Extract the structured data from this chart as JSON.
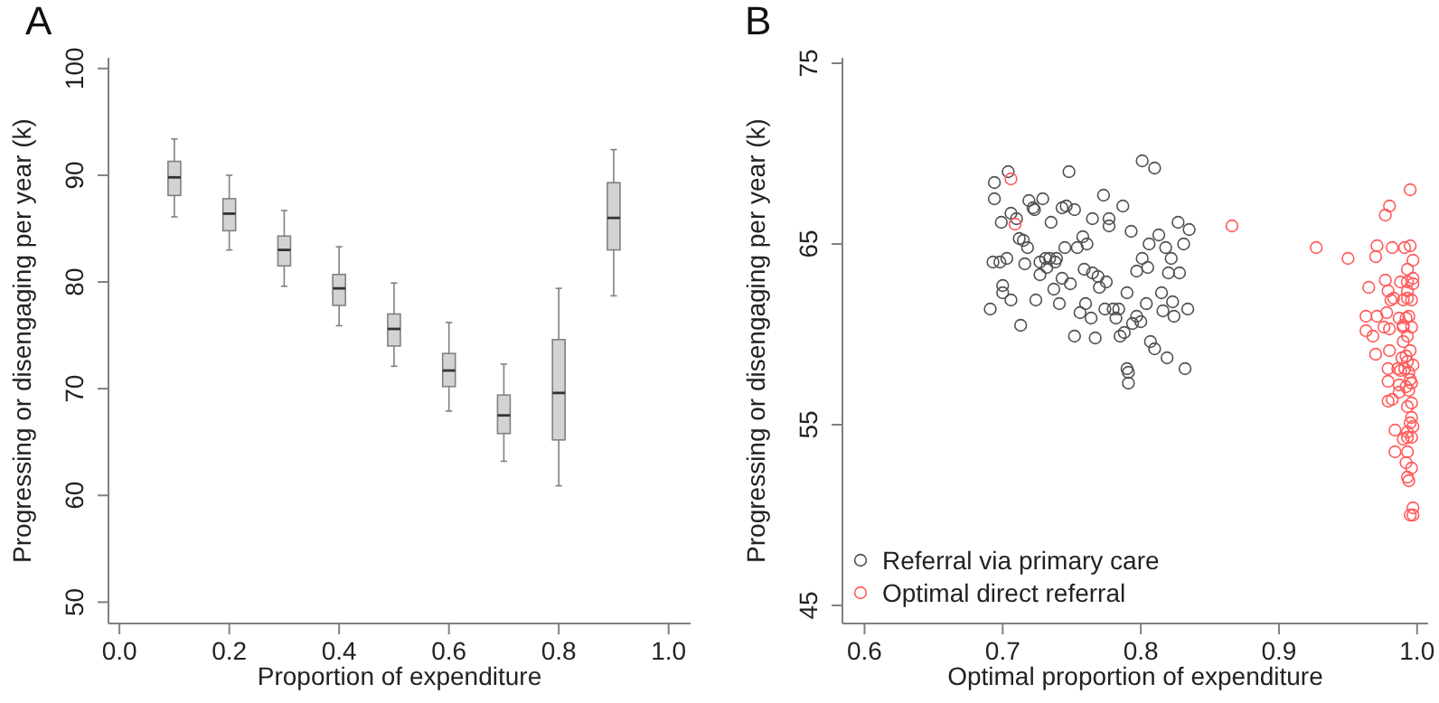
{
  "chart_data": [
    {
      "type": "box",
      "title": "A",
      "xlabel": "Proportion of expenditure",
      "ylabel": "Progressing or disengaging per year (k)",
      "x": [
        0.1,
        0.2,
        0.3,
        0.4,
        0.5,
        0.6,
        0.7,
        0.8,
        0.9
      ],
      "xlim": [
        -0.02,
        1.04
      ],
      "xticks": [
        {
          "value": 0,
          "label": "0.0"
        },
        {
          "value": 0.2,
          "label": "0.2"
        },
        {
          "value": 0.4,
          "label": "0.4"
        },
        {
          "value": 0.6,
          "label": "0.6"
        },
        {
          "value": 0.8,
          "label": "0.8"
        },
        {
          "value": 1,
          "label": "1.0"
        }
      ],
      "ylim": [
        48,
        101
      ],
      "yticks": [
        50,
        60,
        70,
        80,
        90,
        100
      ],
      "series": [
        {
          "color": "#d3d3d3",
          "boxes": [
            {
              "low": 86.1,
              "q1": 88.1,
              "median": 89.8,
              "q3": 91.3,
              "high": 93.4
            },
            {
              "low": 83.0,
              "q1": 84.8,
              "median": 86.4,
              "q3": 87.8,
              "high": 90.0
            },
            {
              "low": 79.6,
              "q1": 81.5,
              "median": 83.0,
              "q3": 84.3,
              "high": 86.7
            },
            {
              "low": 75.9,
              "q1": 77.8,
              "median": 79.4,
              "q3": 80.7,
              "high": 83.3
            },
            {
              "low": 72.1,
              "q1": 74.0,
              "median": 75.6,
              "q3": 77.0,
              "high": 79.9
            },
            {
              "low": 67.9,
              "q1": 70.2,
              "median": 71.7,
              "q3": 73.3,
              "high": 76.2
            },
            {
              "low": 63.2,
              "q1": 65.8,
              "median": 67.5,
              "q3": 69.4,
              "high": 72.3
            },
            {
              "low": 60.9,
              "q1": 65.2,
              "median": 69.6,
              "q3": 74.6,
              "high": 79.4
            },
            {
              "low": 78.7,
              "q1": 83.0,
              "median": 86.0,
              "q3": 89.3,
              "high": 92.4
            }
          ]
        }
      ]
    },
    {
      "type": "scatter",
      "title": "B",
      "xlabel": "Optimal proportion of expenditure",
      "ylabel": "Progressing or disengaging per year (k)",
      "xlim": [
        0.584,
        1.008
      ],
      "xticks": [
        {
          "value": 0.6,
          "label": "0.6"
        },
        {
          "value": 0.7,
          "label": "0.7"
        },
        {
          "value": 0.8,
          "label": "0.8"
        },
        {
          "value": 0.9,
          "label": "0.9"
        },
        {
          "value": 1,
          "label": "1.0"
        }
      ],
      "ylim": [
        44,
        75.3
      ],
      "yticks": [
        45,
        55,
        65,
        75
      ],
      "legend": "bottom left",
      "marker": "circle",
      "series": [
        {
          "name": "Referral via primary care",
          "color": "#505050",
          "x": [
            0.801,
            0.81,
            0.704,
            0.748,
            0.694,
            0.694,
            0.729,
            0.719,
            0.722,
            0.723,
            0.743,
            0.746,
            0.752,
            0.773,
            0.787,
            0.706,
            0.71,
            0.699,
            0.735,
            0.765,
            0.777,
            0.777,
            0.793,
            0.813,
            0.827,
            0.835,
            0.831,
            0.712,
            0.715,
            0.718,
            0.745,
            0.754,
            0.758,
            0.761,
            0.806,
            0.818,
            0.822,
            0.801,
            0.797,
            0.805,
            0.828,
            0.82,
            0.693,
            0.698,
            0.703,
            0.716,
            0.727,
            0.731,
            0.734,
            0.739,
            0.738,
            0.732,
            0.727,
            0.743,
            0.749,
            0.759,
            0.765,
            0.769,
            0.775,
            0.77,
            0.737,
            0.7,
            0.7,
            0.706,
            0.724,
            0.741,
            0.76,
            0.756,
            0.764,
            0.774,
            0.78,
            0.782,
            0.784,
            0.79,
            0.794,
            0.797,
            0.8,
            0.804,
            0.815,
            0.816,
            0.823,
            0.824,
            0.834,
            0.691,
            0.713,
            0.752,
            0.767,
            0.785,
            0.788,
            0.807,
            0.81,
            0.819,
            0.832,
            0.79,
            0.791,
            0.791
          ],
          "values": [
            69.6,
            69.2,
            69.0,
            69.0,
            68.4,
            67.5,
            67.5,
            67.4,
            67.0,
            66.9,
            67.0,
            67.1,
            66.9,
            67.7,
            67.1,
            66.7,
            66.4,
            66.2,
            66.2,
            66.4,
            66.4,
            66.0,
            65.7,
            65.5,
            66.2,
            65.8,
            65.0,
            65.3,
            65.2,
            64.8,
            64.8,
            64.8,
            65.4,
            65.0,
            65.0,
            64.8,
            64.2,
            64.2,
            63.5,
            63.7,
            63.4,
            63.4,
            64.0,
            64.0,
            64.2,
            63.9,
            64.0,
            64.2,
            64.2,
            64.2,
            64.0,
            63.7,
            63.3,
            63.1,
            62.8,
            63.6,
            63.4,
            63.2,
            62.9,
            62.6,
            62.5,
            62.7,
            62.3,
            61.9,
            61.9,
            61.7,
            61.7,
            61.2,
            60.9,
            61.4,
            61.4,
            60.9,
            61.4,
            62.3,
            60.6,
            61.0,
            60.7,
            61.7,
            62.3,
            61.3,
            61.8,
            61.0,
            61.4,
            61.4,
            60.5,
            59.9,
            59.8,
            59.9,
            60.1,
            59.6,
            59.2,
            58.7,
            58.1,
            58.1,
            57.9,
            57.3
          ]
        },
        {
          "name": "Optimal direct referral",
          "color": "#ff5a5a",
          "x": [
            0.706,
            0.709,
            0.866,
            0.995,
            0.98,
            0.977,
            0.927,
            0.95,
            0.971,
            0.982,
            0.991,
            0.995,
            0.97,
            0.997,
            0.993,
            0.997,
            0.993,
            0.965,
            0.977,
            0.988,
            0.997,
            0.993,
            0.979,
            0.983,
            0.981,
            0.993,
            0.99,
            0.996,
            0.963,
            0.971,
            0.978,
            0.987,
            0.992,
            0.994,
            0.99,
            0.996,
            0.963,
            0.968,
            0.976,
            0.98,
            0.99,
            0.993,
            0.99,
            0.995,
            0.992,
            0.98,
            0.97,
            0.989,
            0.993,
            0.997,
            0.991,
            0.979,
            0.986,
            0.988,
            0.994,
            0.995,
            0.996,
            0.979,
            0.987,
            0.992,
            0.994,
            0.987,
            0.982,
            0.979,
            0.993,
            0.996,
            0.996,
            0.995,
            0.997,
            0.993,
            0.984,
            0.99,
            0.993,
            0.996,
            0.984,
            0.993,
            0.992,
            0.996,
            0.993,
            0.994,
            0.997,
            0.995,
            0.997
          ],
          "values": [
            68.6,
            66.1,
            66.0,
            68.0,
            67.1,
            66.6,
            64.8,
            64.2,
            64.9,
            64.8,
            64.8,
            64.9,
            64.3,
            64.1,
            63.6,
            63.1,
            62.9,
            62.6,
            63.0,
            62.9,
            62.8,
            62.4,
            62.4,
            62.0,
            61.9,
            62.0,
            61.9,
            61.9,
            61.0,
            61.0,
            61.2,
            60.9,
            60.9,
            61.0,
            60.5,
            60.4,
            60.2,
            59.9,
            60.4,
            60.3,
            60.4,
            59.9,
            59.6,
            59.1,
            58.8,
            59.1,
            58.9,
            58.7,
            58.5,
            58.3,
            58.1,
            58.1,
            58.1,
            58.0,
            57.9,
            57.5,
            57.3,
            57.4,
            57.2,
            57.1,
            56.9,
            56.8,
            56.4,
            56.3,
            56.0,
            56.2,
            55.4,
            55.1,
            54.9,
            54.6,
            54.7,
            54.2,
            54.3,
            54.3,
            53.5,
            53.5,
            52.9,
            52.6,
            52.1,
            51.9,
            50.4,
            50.0,
            50.0
          ]
        }
      ]
    }
  ]
}
